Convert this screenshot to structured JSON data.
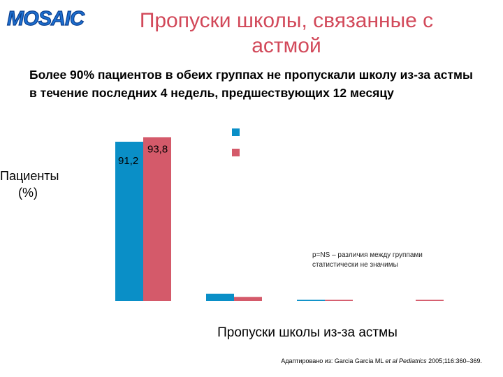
{
  "slide": {
    "logo_text": "MOSAIC",
    "title": "Пропуски школы, связанные с астмой",
    "subtitle": "Более 90% пациентов в обеих группах не пропускали школу из-за астмы в течение последних 4 недель, предшествующих 12 месяцу",
    "citation_prefix": "Адаптировано из: Garcia Garcia ML ",
    "citation_italic": "et al Pediatrics",
    "citation_suffix": " 2005;116:360–369.",
    "note": "p=NS – различия между группами статистически не значимы"
  },
  "chart_data": {
    "type": "bar",
    "ylabel": "Пациенты (%)",
    "xlabel": "Пропуски школы из-за астмы",
    "categories": [
      "",
      "",
      "",
      ""
    ],
    "ylim": [
      0,
      100
    ],
    "series": [
      {
        "values": [
          91.2,
          4.1,
          0.6,
          0
        ],
        "labels": [
          "91,2",
          "",
          "",
          ""
        ],
        "color": "#0a8fc7"
      },
      {
        "values": [
          93.8,
          2.3,
          0.6,
          0.2
        ],
        "labels": [
          "93,8",
          "",
          "",
          ""
        ],
        "color": "#d45a6a"
      }
    ],
    "legend_position": "top-right",
    "grid": false
  }
}
